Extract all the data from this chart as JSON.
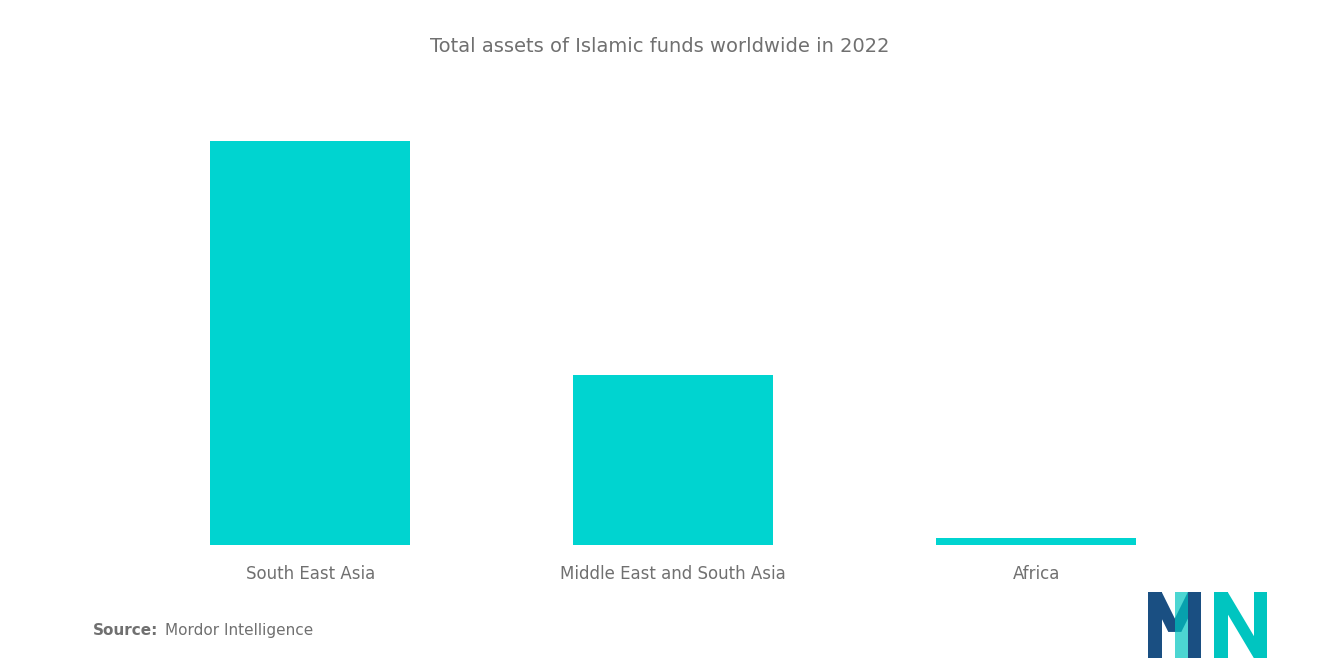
{
  "title": "Total assets of Islamic funds worldwide in 2022",
  "categories": [
    "South East Asia",
    "Middle East and South Asia",
    "Africa"
  ],
  "values": [
    100,
    42,
    1.8
  ],
  "bar_color": "#00D4D0",
  "background_color": "#ffffff",
  "title_fontsize": 14,
  "label_fontsize": 12,
  "source_bold": "Source:",
  "source_text": "  Mordor Intelligence",
  "source_fontsize": 11,
  "text_color": "#707070",
  "ylim": [
    0,
    115
  ]
}
